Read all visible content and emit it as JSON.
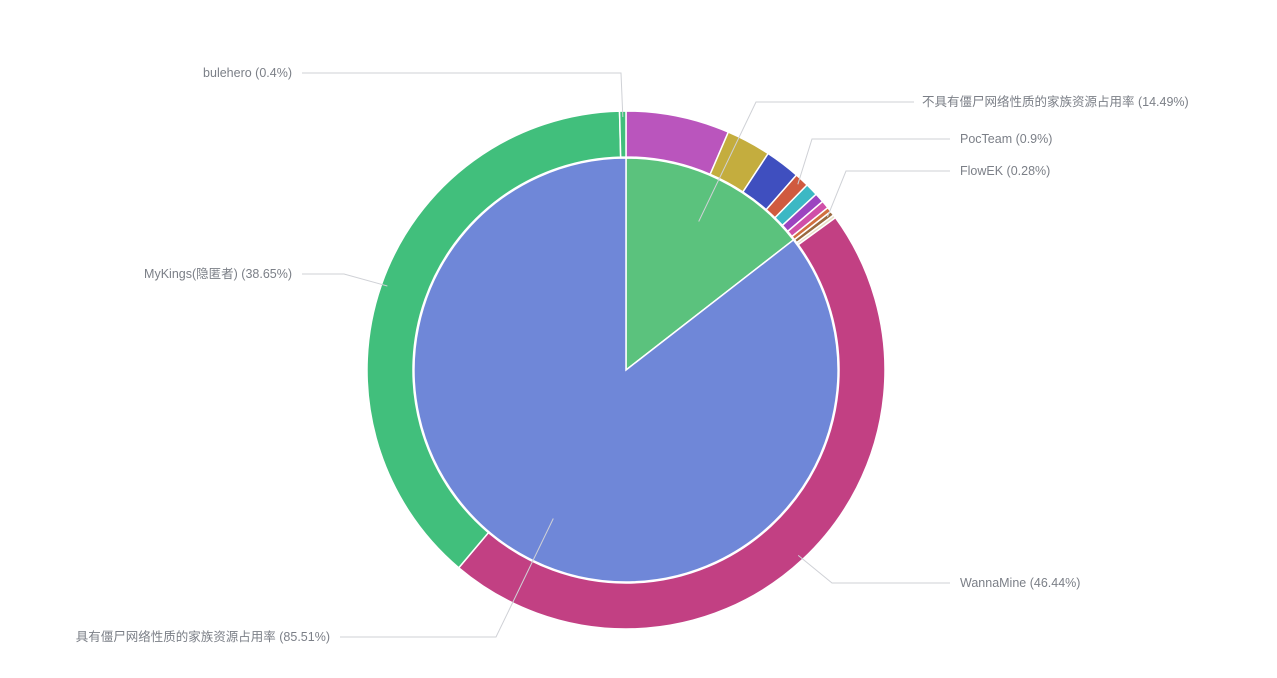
{
  "chart_data": {
    "type": "pie",
    "subtype": "nested-donut",
    "inner": {
      "slices": [
        {
          "name": "不具有僵尸网络性质的家族资源占用率",
          "value": 14.49,
          "label": "不具有僵尸网络性质的家族资源占用率 (14.49%)",
          "color": "#5bc27d"
        },
        {
          "name": "具有僵尸网络性质的家族资源占用率",
          "value": 85.51,
          "label": "具有僵尸网络性质的家族资源占用率 (85.51%)",
          "color": "#6f87d8"
        }
      ]
    },
    "outer": {
      "slices": [
        {
          "value": 6.5,
          "color": "#ba55bd"
        },
        {
          "value": 2.8,
          "color": "#c4ad3e"
        },
        {
          "value": 2.2,
          "color": "#3f4fbf"
        },
        {
          "name": "PocTeam",
          "value": 0.9,
          "label": "PocTeam (0.9%)",
          "color": "#d05a3f"
        },
        {
          "value": 0.8,
          "color": "#3cb8c4"
        },
        {
          "value": 0.6,
          "color": "#9c44c0"
        },
        {
          "value": 0.5,
          "color": "#d04fa8"
        },
        {
          "value": 0.3,
          "color": "#d0703f"
        },
        {
          "name": "FlowEK",
          "value": 0.28,
          "label": "FlowEK (0.28%)",
          "color": "#9a6a3f"
        },
        {
          "value": 0.2,
          "color": "#e8e0c8"
        },
        {
          "name": "WannaMine",
          "value": 46.44,
          "label": "WannaMine (46.44%)",
          "color": "#c24083"
        },
        {
          "name": "MyKings(隐匿者)",
          "value": 38.65,
          "label": "MyKings(隐匿者) (38.65%)",
          "color": "#41bf7c"
        },
        {
          "name": "bulehero",
          "value": 0.4,
          "label": "bulehero (0.4%)",
          "color": "#41bf7c"
        }
      ]
    },
    "legend": "none"
  }
}
